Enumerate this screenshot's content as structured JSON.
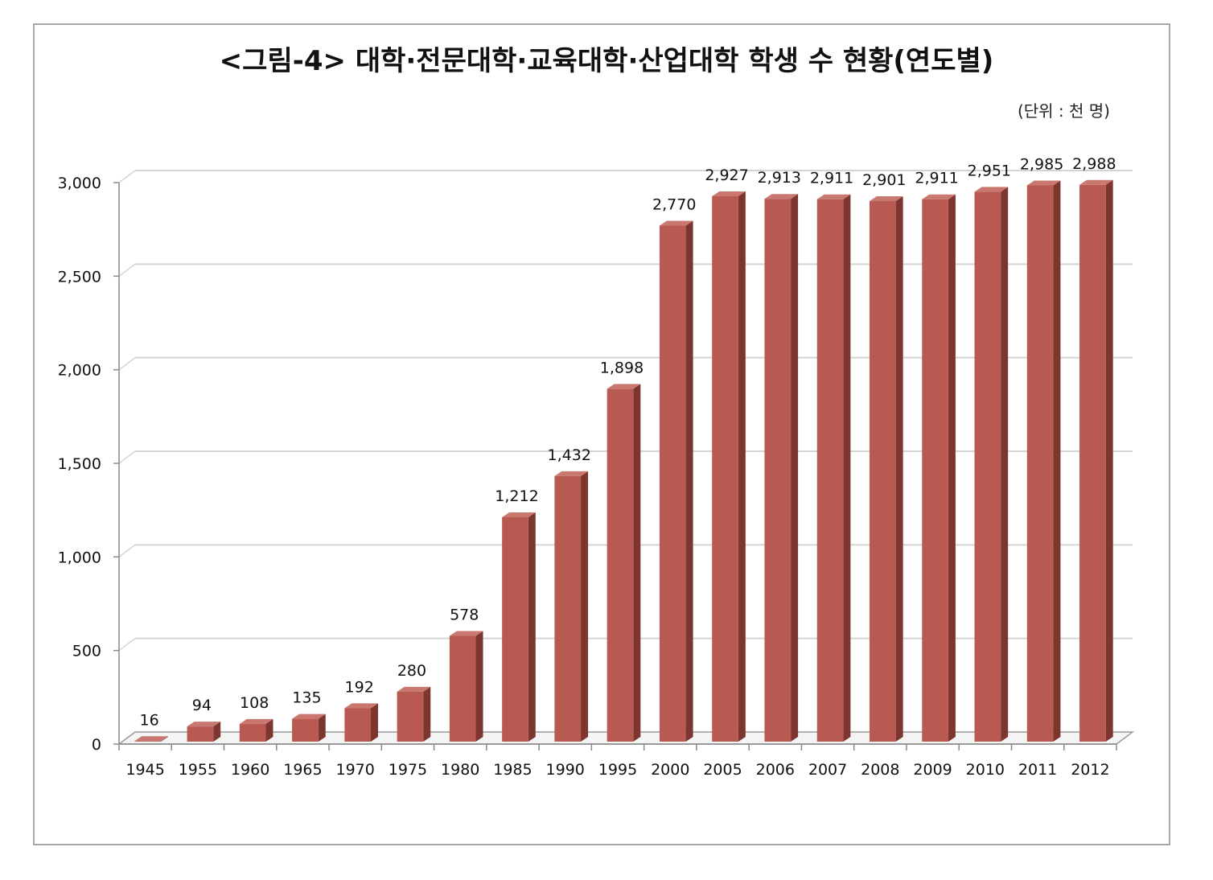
{
  "chart_data": {
    "type": "bar",
    "title": "<그림-4> 대학·전문대학·교육대학·산업대학 학생 수 현황(연도별)",
    "unit_note": "(단위 : 천 명)",
    "categories": [
      "1945",
      "1955",
      "1960",
      "1965",
      "1970",
      "1975",
      "1980",
      "1985",
      "1990",
      "1995",
      "2000",
      "2005",
      "2006",
      "2007",
      "2008",
      "2009",
      "2010",
      "2011",
      "2012"
    ],
    "values": [
      16,
      94,
      108,
      135,
      192,
      280,
      578,
      1212,
      1432,
      1898,
      2770,
      2927,
      2913,
      2911,
      2901,
      2911,
      2951,
      2985,
      2988
    ],
    "value_labels": [
      "16",
      "94",
      "108",
      "135",
      "192",
      "280",
      "578",
      "1,212",
      "1,432",
      "1,898",
      "2,770",
      "2,927",
      "2,913",
      "2,911",
      "2,901",
      "2,911",
      "2,951",
      "2,985",
      "2,988"
    ],
    "y_ticks": [
      0,
      500,
      1000,
      1500,
      2000,
      2500,
      3000
    ],
    "y_tick_labels": [
      "0",
      "500",
      "1,000",
      "1,500",
      "2,000",
      "2,500",
      "3,000"
    ],
    "ylim": [
      0,
      3000
    ],
    "xlabel": "",
    "ylabel": "",
    "grid": true,
    "bar_color": "#b85a52",
    "bar_side_color": "#7d3530",
    "bar_top_color": "#c97870"
  }
}
